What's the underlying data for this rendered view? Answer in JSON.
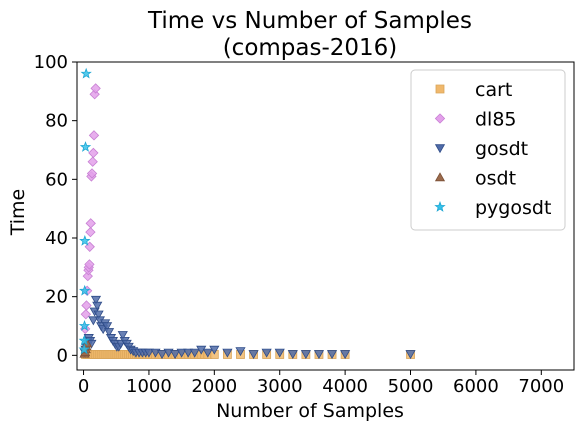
{
  "chart_data": {
    "type": "scatter",
    "title_lines": [
      "Time vs Number of Samples",
      "(compas-2016)"
    ],
    "xlabel": "Number of Samples",
    "ylabel": "Time",
    "xlim": [
      -100,
      7500
    ],
    "ylim": [
      -5,
      100
    ],
    "xticks": [
      0,
      1000,
      2000,
      3000,
      4000,
      5000,
      6000,
      7000
    ],
    "yticks": [
      0,
      20,
      40,
      60,
      80,
      100
    ],
    "legend_position": "top-right",
    "series": [
      {
        "name": "cart",
        "marker": "square",
        "color": "#f0b86c",
        "edge": "#d9a55a",
        "points": [
          [
            30,
            0.3
          ],
          [
            60,
            0.3
          ],
          [
            90,
            0.3
          ],
          [
            120,
            0.3
          ],
          [
            150,
            0.3
          ],
          [
            180,
            0.3
          ],
          [
            210,
            0.3
          ],
          [
            240,
            0.3
          ],
          [
            270,
            0.3
          ],
          [
            300,
            0.3
          ],
          [
            330,
            0.3
          ],
          [
            360,
            0.3
          ],
          [
            390,
            0.3
          ],
          [
            420,
            0.3
          ],
          [
            450,
            0.3
          ],
          [
            480,
            0.3
          ],
          [
            510,
            0.3
          ],
          [
            540,
            0.3
          ],
          [
            570,
            0.3
          ],
          [
            600,
            0.3
          ],
          [
            630,
            0.3
          ],
          [
            660,
            0.3
          ],
          [
            690,
            0.3
          ],
          [
            720,
            0.3
          ],
          [
            750,
            0.3
          ],
          [
            780,
            0.3
          ],
          [
            810,
            0.3
          ],
          [
            840,
            0.3
          ],
          [
            870,
            0.3
          ],
          [
            900,
            0.3
          ],
          [
            940,
            0.3
          ],
          [
            980,
            0.3
          ],
          [
            1020,
            0.3
          ],
          [
            1060,
            0.3
          ],
          [
            1100,
            0.3
          ],
          [
            1150,
            0.3
          ],
          [
            1200,
            0.3
          ],
          [
            1250,
            0.3
          ],
          [
            1300,
            0.3
          ],
          [
            1350,
            0.3
          ],
          [
            1400,
            0.3
          ],
          [
            1450,
            0.3
          ],
          [
            1500,
            0.3
          ],
          [
            1550,
            0.3
          ],
          [
            1600,
            0.3
          ],
          [
            1650,
            0.3
          ],
          [
            1700,
            0.3
          ],
          [
            1750,
            0.3
          ],
          [
            1800,
            0.3
          ],
          [
            1850,
            0.3
          ],
          [
            1900,
            0.3
          ],
          [
            2000,
            0.3
          ],
          [
            2200,
            0.3
          ],
          [
            2400,
            0.3
          ],
          [
            2600,
            0.3
          ],
          [
            2800,
            0.3
          ],
          [
            3000,
            0.3
          ],
          [
            3200,
            0.3
          ],
          [
            3400,
            0.3
          ],
          [
            3600,
            0.3
          ],
          [
            3800,
            0.3
          ],
          [
            4000,
            0.3
          ],
          [
            5000,
            0.3
          ]
        ]
      },
      {
        "name": "dl85",
        "marker": "diamond",
        "color": "#e3a0ea",
        "edge": "#c77fd3",
        "points": [
          [
            25,
            9
          ],
          [
            35,
            14
          ],
          [
            45,
            17
          ],
          [
            55,
            22
          ],
          [
            65,
            27
          ],
          [
            75,
            29
          ],
          [
            80,
            30
          ],
          [
            90,
            31
          ],
          [
            95,
            37
          ],
          [
            105,
            42
          ],
          [
            110,
            45
          ],
          [
            120,
            61
          ],
          [
            130,
            62
          ],
          [
            140,
            66
          ],
          [
            150,
            69
          ],
          [
            160,
            75
          ],
          [
            170,
            89
          ],
          [
            185,
            91
          ]
        ]
      },
      {
        "name": "gosdt",
        "marker": "triangle-down",
        "color": "#4f6ba8",
        "edge": "#2f4c88",
        "points": [
          [
            20,
            1
          ],
          [
            30,
            2
          ],
          [
            40,
            3
          ],
          [
            50,
            3
          ],
          [
            60,
            4
          ],
          [
            70,
            5
          ],
          [
            80,
            6
          ],
          [
            100,
            5
          ],
          [
            120,
            4
          ],
          [
            150,
            12
          ],
          [
            170,
            15
          ],
          [
            190,
            19
          ],
          [
            210,
            17
          ],
          [
            230,
            14
          ],
          [
            250,
            12
          ],
          [
            270,
            10
          ],
          [
            300,
            9
          ],
          [
            330,
            11
          ],
          [
            360,
            10
          ],
          [
            390,
            8
          ],
          [
            420,
            6
          ],
          [
            450,
            5
          ],
          [
            480,
            4
          ],
          [
            510,
            3
          ],
          [
            540,
            3
          ],
          [
            570,
            4
          ],
          [
            600,
            7
          ],
          [
            630,
            5
          ],
          [
            660,
            4
          ],
          [
            690,
            3
          ],
          [
            720,
            2
          ],
          [
            760,
            1.5
          ],
          [
            800,
            1
          ],
          [
            850,
            1
          ],
          [
            900,
            1
          ],
          [
            950,
            1
          ],
          [
            1000,
            1
          ],
          [
            1100,
            1
          ],
          [
            1200,
            0.5
          ],
          [
            1300,
            1
          ],
          [
            1400,
            0.5
          ],
          [
            1500,
            1
          ],
          [
            1600,
            1
          ],
          [
            1700,
            1
          ],
          [
            1800,
            2
          ],
          [
            1900,
            1
          ],
          [
            2000,
            2
          ],
          [
            2200,
            1
          ],
          [
            2400,
            1.5
          ],
          [
            2600,
            0.5
          ],
          [
            2800,
            1
          ],
          [
            3000,
            1
          ],
          [
            3200,
            0.5
          ],
          [
            3400,
            0.5
          ],
          [
            3600,
            0.5
          ],
          [
            3800,
            0.5
          ],
          [
            4000,
            0.5
          ],
          [
            5000,
            0.5
          ]
        ]
      },
      {
        "name": "osdt",
        "marker": "triangle-up",
        "color": "#9b6a4c",
        "edge": "#7a4f35",
        "points": [
          [
            15,
            0.5
          ],
          [
            25,
            1
          ],
          [
            35,
            2
          ],
          [
            45,
            3
          ],
          [
            55,
            4
          ]
        ]
      },
      {
        "name": "pygosdt",
        "marker": "star",
        "color": "#36c2ea",
        "edge": "#1ea7d4",
        "points": [
          [
            10,
            2
          ],
          [
            12,
            5
          ],
          [
            15,
            10
          ],
          [
            18,
            22
          ],
          [
            20,
            39
          ],
          [
            30,
            71
          ],
          [
            40,
            96
          ]
        ]
      }
    ]
  }
}
